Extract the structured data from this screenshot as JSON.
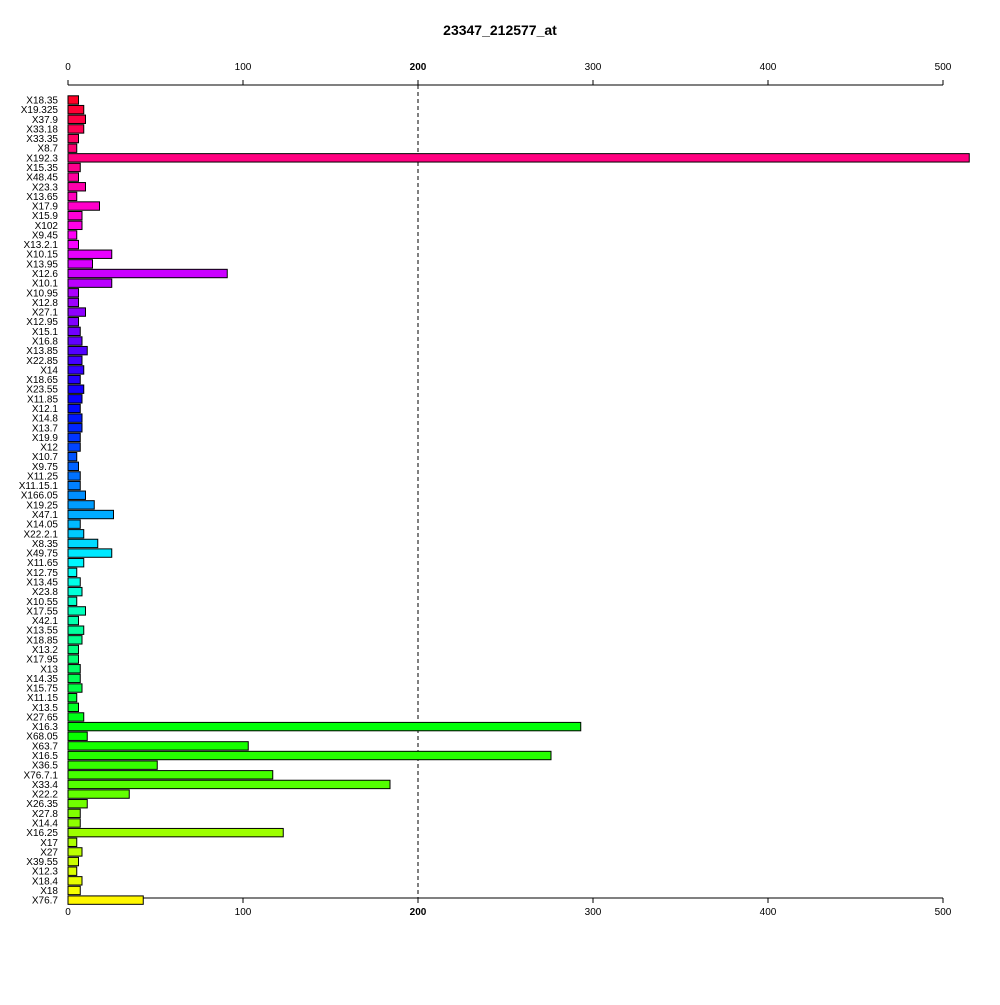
{
  "chart_data": {
    "type": "bar",
    "orientation": "horizontal",
    "title": "23347_212577_at",
    "xlim": [
      0,
      515
    ],
    "xticks": [
      0,
      100,
      200,
      300,
      400,
      500
    ],
    "xtick_labels": [
      "0",
      "100",
      "200",
      "300",
      "400",
      "500"
    ],
    "bold_tick": "200",
    "reference_line": 200,
    "reference_line_style": "dashed",
    "grid": false,
    "categories": [
      "X18.35",
      "X19.325",
      "X37.9",
      "X33.18",
      "X33.35",
      "X8.7",
      "X192.3",
      "X15.35",
      "X48.45",
      "X23.3",
      "X13.65",
      "X17.9",
      "X15.9",
      "X102",
      "X9.45",
      "X13.2.1",
      "X10.15",
      "X13.95",
      "X12.6",
      "X10.1",
      "X10.95",
      "X12.8",
      "X27.1",
      "X12.95",
      "X15.1",
      "X16.8",
      "X13.85",
      "X22.85",
      "X14",
      "X18.65",
      "X23.55",
      "X11.85",
      "X12.1",
      "X14.8",
      "X13.7",
      "X19.9",
      "X12",
      "X10.7",
      "X9.75",
      "X11.25",
      "X11.15.1",
      "X166.05",
      "X19.25",
      "X47.1",
      "X14.05",
      "X22.2.1",
      "X8.35",
      "X49.75",
      "X11.65",
      "X12.75",
      "X13.45",
      "X23.8",
      "X10.55",
      "X17.55",
      "X42.1",
      "X13.55",
      "X18.85",
      "X13.2",
      "X17.95",
      "X13",
      "X14.35",
      "X15.75",
      "X11.15",
      "X13.5",
      "X27.65",
      "X16.3",
      "X68.05",
      "X63.7",
      "X16.5",
      "X36.5",
      "X76.7.1",
      "X33.4",
      "X22.2",
      "X26.35",
      "X27.8",
      "X14.4",
      "X16.25",
      "X17",
      "X27",
      "X39.55",
      "X12.3",
      "X18.4",
      "X18",
      "X76.7"
    ],
    "values": [
      6,
      9,
      10,
      9,
      6,
      5,
      515,
      7,
      6,
      10,
      5,
      18,
      8,
      8,
      5,
      6,
      25,
      14,
      91,
      25,
      6,
      6,
      10,
      6,
      7,
      8,
      11,
      8,
      9,
      7,
      9,
      8,
      7,
      8,
      8,
      7,
      7,
      5,
      6,
      7,
      7,
      10,
      15,
      26,
      7,
      9,
      17,
      25,
      9,
      5,
      7,
      8,
      5,
      10,
      6,
      9,
      8,
      6,
      6,
      7,
      7,
      8,
      5,
      6,
      9,
      293,
      11,
      103,
      276,
      51,
      117,
      184,
      35,
      11,
      7,
      7,
      123,
      5,
      8,
      6,
      5,
      8,
      7,
      43
    ],
    "colors": [
      "#FF0026",
      "#FF0035",
      "#FF0044",
      "#FF0053",
      "#FF0062",
      "#FF0071",
      "#FF0080",
      "#FF008E",
      "#FF009D",
      "#FF00AC",
      "#FF00BB",
      "#FF00CA",
      "#FF00D9",
      "#FF00E8",
      "#FF00F7",
      "#F700FF",
      "#E800FF",
      "#D900FF",
      "#CA00FF",
      "#BB00FF",
      "#AC00FF",
      "#9D00FF",
      "#8E00FF",
      "#8000FF",
      "#7100FF",
      "#6200FF",
      "#5300FF",
      "#4400FF",
      "#3500FF",
      "#2600FF",
      "#1700FF",
      "#0800FF",
      "#0008FF",
      "#0017FF",
      "#0026FF",
      "#0035FF",
      "#0044FF",
      "#0053FF",
      "#0062FF",
      "#0071FF",
      "#0080FF",
      "#008EFF",
      "#009DFF",
      "#00ACFF",
      "#00BBFF",
      "#00CAFF",
      "#00D9FF",
      "#00E8FF",
      "#00F7FF",
      "#00FFF7",
      "#00FFE8",
      "#00FFD9",
      "#00FFCA",
      "#00FFBB",
      "#00FFAC",
      "#00FF9D",
      "#00FF8E",
      "#00FF80",
      "#00FF71",
      "#00FF62",
      "#00FF53",
      "#00FF44",
      "#00FF35",
      "#00FF26",
      "#00FF17",
      "#00FF08",
      "#08FF00",
      "#17FF00",
      "#26FF00",
      "#35FF00",
      "#44FF00",
      "#53FF00",
      "#62FF00",
      "#71FF00",
      "#80FF00",
      "#8EFF00",
      "#9DFF00",
      "#ACFF00",
      "#BBFF00",
      "#CAFF00",
      "#D9FF00",
      "#E8FF00",
      "#F7FF00",
      "#FFF700"
    ]
  }
}
